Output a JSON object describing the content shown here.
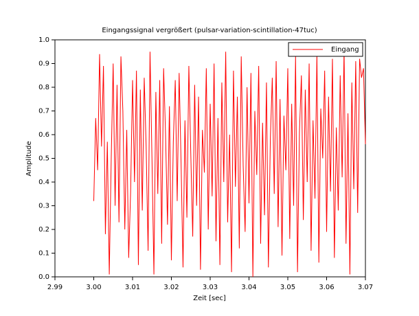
{
  "chart_data": {
    "type": "line",
    "title": "Eingangssignal vergrößert (pulsar-variation-scintillation-47tuc)",
    "xlabel": "Zeit [sec]",
    "ylabel": "Amplitude",
    "xlim": [
      2.99,
      3.07
    ],
    "xticks": [
      2.99,
      {
        "value": 3.0,
        "label": "3.00"
      },
      3.01,
      3.02,
      3.03,
      3.04,
      3.05,
      3.06,
      3.07
    ],
    "ylim": [
      0,
      1
    ],
    "yticks": [
      {
        "value": 0,
        "label": "0.0"
      },
      0.1,
      0.2,
      0.3,
      0.4,
      0.5,
      0.6,
      0.7,
      0.8,
      0.9,
      {
        "value": 1,
        "label": "1.0"
      }
    ],
    "legend": "upper right",
    "x": [
      3.0,
      3.0005,
      3.001,
      3.0015,
      3.002,
      3.0025,
      3.003,
      3.0035,
      3.004,
      3.0045,
      3.005,
      3.0055,
      3.006,
      3.0065,
      3.007,
      3.0075,
      3.008,
      3.0085,
      3.009,
      3.0095,
      3.01,
      3.0105,
      3.011,
      3.0115,
      3.012,
      3.0125,
      3.013,
      3.0135,
      3.014,
      3.0145,
      3.015,
      3.0155,
      3.016,
      3.0165,
      3.017,
      3.0175,
      3.018,
      3.0185,
      3.019,
      3.0195,
      3.02,
      3.0205,
      3.021,
      3.0215,
      3.022,
      3.0225,
      3.023,
      3.0235,
      3.024,
      3.0245,
      3.025,
      3.0255,
      3.026,
      3.0265,
      3.027,
      3.0275,
      3.028,
      3.0285,
      3.029,
      3.0295,
      3.03,
      3.0305,
      3.031,
      3.0315,
      3.032,
      3.0325,
      3.033,
      3.0335,
      3.034,
      3.0345,
      3.035,
      3.0355,
      3.036,
      3.0365,
      3.037,
      3.0375,
      3.038,
      3.0385,
      3.039,
      3.0395,
      3.04,
      3.0405,
      3.041,
      3.0415,
      3.042,
      3.0425,
      3.043,
      3.0435,
      3.044,
      3.0445,
      3.045,
      3.0455,
      3.046,
      3.0465,
      3.047,
      3.0475,
      3.048,
      3.0485,
      3.049,
      3.0495,
      3.05,
      3.0505,
      3.051,
      3.0515,
      3.052,
      3.0525,
      3.053,
      3.0535,
      3.054,
      3.0545,
      3.055,
      3.0555,
      3.056,
      3.0565,
      3.057,
      3.0575,
      3.058,
      3.0585,
      3.059,
      3.0595,
      3.06,
      3.0605,
      3.061,
      3.0615,
      3.062,
      3.0625,
      3.063,
      3.0635,
      3.064,
      3.0645,
      3.065,
      3.0655,
      3.066,
      3.0665,
      3.067,
      3.0675,
      3.068,
      3.0685,
      3.069,
      3.0695,
      3.07
    ],
    "series": [
      {
        "name": "Eingang",
        "color": "#ff0000",
        "values": [
          0.32,
          0.67,
          0.45,
          0.94,
          0.55,
          0.89,
          0.18,
          0.57,
          0.01,
          0.5,
          0.9,
          0.3,
          0.81,
          0.23,
          0.93,
          0.7,
          0.2,
          0.62,
          0.08,
          0.36,
          0.83,
          0.4,
          0.87,
          0.05,
          0.79,
          0.28,
          0.84,
          0.55,
          0.11,
          0.95,
          0.5,
          0.01,
          0.78,
          0.35,
          0.83,
          0.14,
          0.88,
          0.6,
          0.22,
          0.72,
          0.07,
          0.57,
          0.83,
          0.32,
          0.86,
          0.48,
          0.04,
          0.66,
          0.25,
          0.89,
          0.52,
          0.17,
          0.81,
          0.3,
          0.76,
          0.03,
          0.62,
          0.44,
          0.88,
          0.2,
          0.73,
          0.34,
          0.9,
          0.15,
          0.67,
          0.05,
          0.82,
          0.4,
          0.95,
          0.23,
          0.6,
          0.02,
          0.87,
          0.38,
          0.76,
          0.12,
          0.93,
          0.47,
          0.19,
          0.8,
          0.31,
          0.86,
          0.0,
          0.7,
          0.43,
          0.89,
          0.14,
          0.65,
          0.26,
          0.82,
          0.04,
          0.58,
          0.84,
          0.35,
          0.91,
          0.21,
          0.75,
          0.09,
          0.68,
          0.45,
          0.88,
          0.16,
          0.73,
          0.3,
          0.93,
          0.02,
          0.61,
          0.85,
          0.24,
          0.79,
          0.4,
          0.9,
          0.11,
          0.66,
          0.33,
          0.94,
          0.06,
          0.71,
          0.5,
          0.87,
          0.19,
          0.76,
          0.36,
          0.92,
          0.08,
          0.63,
          0.28,
          0.85,
          0.42,
          0.96,
          0.14,
          0.69,
          0.01,
          0.82,
          0.37,
          0.91,
          0.27,
          0.92,
          0.84,
          0.88,
          0.56
        ]
      }
    ]
  }
}
